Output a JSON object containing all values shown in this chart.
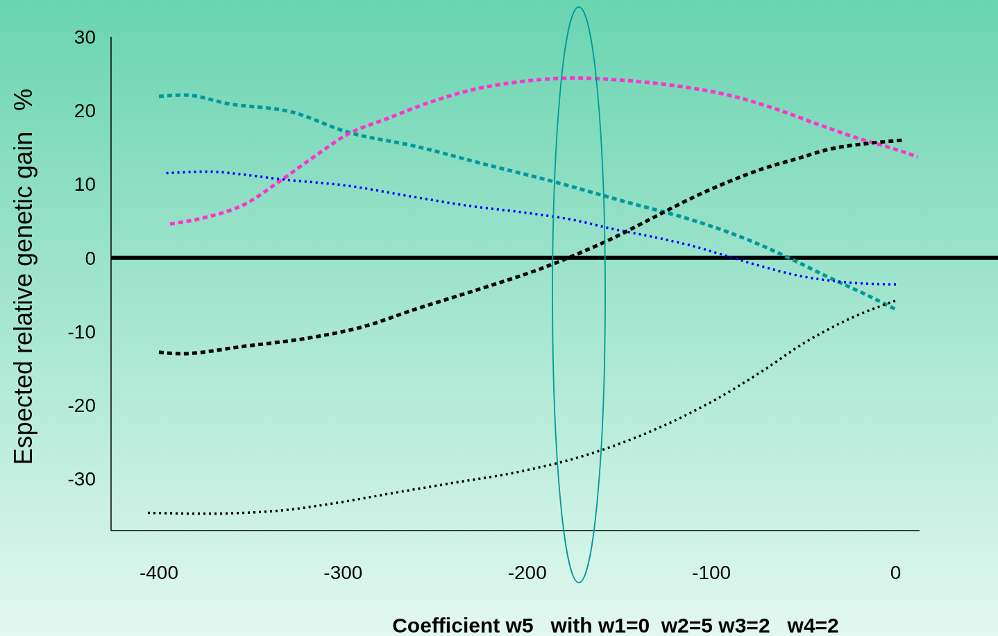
{
  "chart_data": {
    "type": "line",
    "xlabel": "Coefficient w5   with w1=0  w2=5 w3=2   w4=2",
    "ylabel": "Espected relative genetic gain   %",
    "xlim": [
      -426,
      13
    ],
    "xticks": [
      -400,
      -300,
      -200,
      -100,
      0
    ],
    "ylim": [
      -37,
      30
    ],
    "yticks": [
      -30,
      -20,
      -10,
      0,
      10,
      20,
      30
    ],
    "grid": false,
    "ref_lines": [
      {
        "axis": "y",
        "value": 0,
        "color": "#000000"
      }
    ],
    "series": [
      {
        "color": "#009999",
        "line_style": "dashed",
        "x": [
          -400,
          -386,
          -362,
          -328,
          -298,
          -260,
          -223,
          -185,
          -148,
          -110,
          -91,
          -72,
          -53,
          -35,
          -16,
          1
        ],
        "values": [
          21.9,
          22.1,
          20.9,
          19.8,
          17.1,
          15.1,
          12.7,
          10.3,
          7.7,
          5.1,
          3.5,
          1.6,
          -0.6,
          -2.8,
          -5,
          -7.1
        ]
      },
      {
        "color": "#ff33cc",
        "line_style": "dashed",
        "x": [
          -394,
          -373,
          -354,
          -335,
          -317,
          -298,
          -275,
          -253,
          -230,
          -204,
          -174,
          -148,
          -118,
          -91,
          -65,
          -42,
          -20,
          -1,
          12
        ],
        "values": [
          4.6,
          5.6,
          7.2,
          10.3,
          13.5,
          16.7,
          19,
          21.1,
          22.8,
          23.9,
          24.4,
          24.1,
          23.3,
          22.1,
          20.2,
          18.1,
          16.2,
          14.8,
          13.7
        ]
      },
      {
        "color": "#0000ff",
        "line_style": "dotted",
        "x": [
          -396,
          -373,
          -354,
          -335,
          -298,
          -260,
          -230,
          -200,
          -174,
          -155,
          -129,
          -110,
          -91,
          -72,
          -53,
          -35,
          -16,
          1
        ],
        "values": [
          11.5,
          11.7,
          11.3,
          10.7,
          9.8,
          8.2,
          7,
          6.1,
          5.1,
          4,
          2.7,
          1.6,
          0.2,
          -1.2,
          -2.4,
          -3.1,
          -3.5,
          -3.6
        ]
      },
      {
        "color": "#000000",
        "line_style": "dashed",
        "x": [
          -400,
          -388,
          -354,
          -317,
          -290,
          -260,
          -223,
          -193,
          -174,
          -155,
          -129,
          -110,
          -91,
          -72,
          -53,
          -35,
          -16,
          5
        ],
        "values": [
          -12.8,
          -13,
          -12,
          -10.8,
          -9.4,
          -6.9,
          -4,
          -1.5,
          0.4,
          2.5,
          5.8,
          8.2,
          10.3,
          12.1,
          13.5,
          14.8,
          15.5,
          16
        ]
      },
      {
        "color": "#000000",
        "line_style": "dotted",
        "x": [
          -406,
          -373,
          -335,
          -305,
          -275,
          -242,
          -204,
          -166,
          -129,
          -99,
          -72,
          -50,
          -27,
          1
        ],
        "values": [
          -34.6,
          -34.7,
          -34.3,
          -33.3,
          -32,
          -30.6,
          -29,
          -26.6,
          -23.1,
          -19.4,
          -15.3,
          -11.6,
          -8.5,
          -5.7
        ]
      }
    ]
  }
}
